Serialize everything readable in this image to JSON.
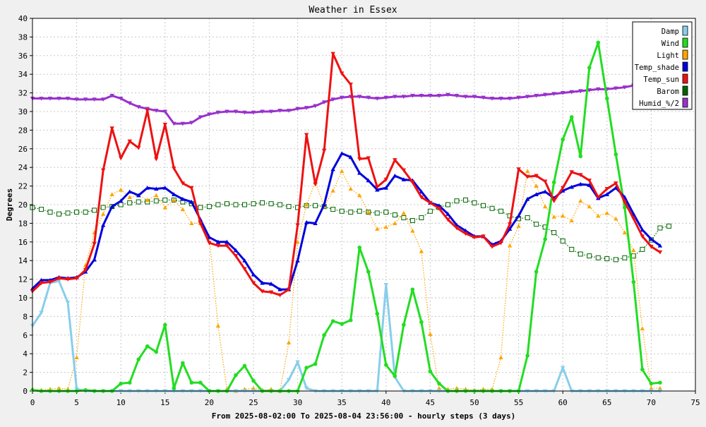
{
  "background_color": "#f0f0f0",
  "chart_data": {
    "type": "line",
    "title": "Weather in Essex",
    "xlabel": "From 2025-08-02:00 To 2025-08-04 23:56:00 - hourly steps (3 days)",
    "ylabel": "Degrees",
    "xlim": [
      0,
      75
    ],
    "ylim": [
      0,
      40
    ],
    "xticks": [
      0,
      5,
      10,
      15,
      20,
      25,
      30,
      35,
      40,
      45,
      50,
      55,
      60,
      65,
      70,
      75
    ],
    "yticks": [
      0,
      2,
      4,
      6,
      8,
      10,
      12,
      14,
      16,
      18,
      20,
      22,
      24,
      26,
      28,
      30,
      32,
      34,
      36,
      38,
      40
    ],
    "grid": true,
    "legend_position": "top-right",
    "series": [
      {
        "name": "Damp",
        "color": "#87ceeb",
        "style": "solid",
        "marker": "triangle-down",
        "values": [
          7.0,
          8.4,
          11.6,
          11.8,
          9.5,
          0.2,
          0,
          0,
          0,
          0,
          0,
          0,
          0,
          0,
          0,
          0,
          0,
          0,
          0,
          0,
          0,
          0,
          0,
          0,
          0,
          0,
          0,
          0,
          0,
          1.2,
          3.1,
          0.3,
          0,
          0,
          0,
          0,
          0,
          0,
          0,
          0,
          11.4,
          1.5,
          0,
          0,
          0,
          0,
          0,
          0,
          0,
          0,
          0,
          0,
          0,
          0,
          0,
          0,
          0,
          0,
          0,
          0,
          2.5,
          0,
          0,
          0,
          0,
          0,
          0,
          0,
          0,
          0,
          0,
          0
        ]
      },
      {
        "name": "Wind",
        "color": "#22dd22",
        "style": "solid",
        "marker": "circle",
        "values": [
          0.1,
          0,
          0,
          0,
          0,
          0,
          0.1,
          0,
          0,
          0,
          0.8,
          0.9,
          3.4,
          4.8,
          4.2,
          7.1,
          0.3,
          3.0,
          0.9,
          0.9,
          0,
          0,
          0,
          1.7,
          2.7,
          1.1,
          0,
          0,
          0,
          0,
          0,
          2.5,
          2.9,
          6.0,
          7.5,
          7.2,
          7.6,
          15.4,
          12.8,
          8.3,
          2.8,
          1.6,
          7.1,
          10.9,
          7.4,
          2.1,
          0.8,
          0,
          0,
          0,
          0,
          0,
          0,
          0,
          0,
          0,
          3.8,
          12.8,
          16.3,
          22.4,
          27.0,
          29.4,
          25.2,
          34.7,
          37.4,
          31.4,
          25.4,
          19.7,
          11.7,
          2.3,
          0.8,
          0.9
        ]
      },
      {
        "name": "Light",
        "color": "#ffa500",
        "style": "dotted",
        "marker": "triangle-up",
        "values": [
          0.2,
          0.1,
          0.2,
          0.3,
          0.2,
          3.6,
          13.5,
          17.0,
          19.0,
          21.1,
          21.6,
          20.8,
          21.0,
          20.5,
          21.0,
          19.7,
          20.5,
          19.5,
          18.0,
          18.0,
          16.5,
          7.0,
          0.2,
          0,
          0.2,
          0.3,
          0.1,
          0.2,
          0,
          5.2,
          16.0,
          20.0,
          22.4,
          19.8,
          21.5,
          23.6,
          21.7,
          21.0,
          19.2,
          17.4,
          17.6,
          18.0,
          19.1,
          17.2,
          15.0,
          6.1,
          0.3,
          0.2,
          0.3,
          0.2,
          0.1,
          0.2,
          0.2,
          3.6,
          15.6,
          17.7,
          23.6,
          22.0,
          19.8,
          18.7,
          18.8,
          18.3,
          20.4,
          19.8,
          18.8,
          19.1,
          18.5,
          17.0,
          15.1,
          6.7,
          0.3,
          0.3
        ]
      },
      {
        "name": "Temp_shade",
        "color": "#0000dd",
        "style": "solid",
        "marker": "triangle-up",
        "values": [
          11.0,
          11.9,
          11.9,
          12.2,
          12.1,
          12.2,
          12.8,
          14.1,
          17.8,
          19.8,
          20.4,
          21.4,
          21.0,
          21.8,
          21.7,
          21.8,
          21.1,
          20.6,
          20.3,
          18.4,
          16.5,
          16.0,
          16.0,
          15.1,
          14.0,
          12.5,
          11.6,
          11.5,
          10.9,
          10.9,
          14.0,
          18.1,
          18.0,
          20.0,
          23.8,
          25.5,
          25.1,
          23.4,
          22.6,
          21.6,
          21.8,
          23.1,
          22.7,
          22.6,
          21.4,
          20.2,
          19.9,
          19.0,
          17.8,
          17.2,
          16.6,
          16.6,
          15.7,
          16.1,
          17.4,
          18.8,
          20.6,
          21.1,
          21.4,
          20.7,
          21.5,
          21.9,
          22.2,
          22.1,
          20.7,
          21.1,
          21.8,
          20.8,
          19.0,
          17.3,
          16.3,
          15.6
        ]
      },
      {
        "name": "Temp_sun",
        "color": "#ee1111",
        "style": "solid",
        "marker": "triangle-down",
        "values": [
          10.7,
          11.6,
          11.7,
          12.1,
          12.0,
          12.1,
          13.0,
          15.8,
          23.7,
          28.2,
          25.0,
          26.8,
          26.1,
          30.1,
          24.9,
          28.6,
          23.9,
          22.3,
          21.8,
          18.0,
          15.9,
          15.6,
          15.6,
          14.5,
          13.1,
          11.6,
          10.7,
          10.6,
          10.3,
          10.9,
          17.8,
          27.5,
          22.2,
          25.8,
          36.2,
          34.1,
          32.9,
          24.9,
          25.0,
          21.9,
          22.7,
          24.8,
          23.7,
          22.4,
          20.8,
          20.2,
          19.6,
          18.4,
          17.5,
          16.9,
          16.5,
          16.6,
          15.5,
          15.9,
          17.9,
          23.8,
          23.0,
          23.1,
          22.5,
          20.4,
          21.8,
          23.5,
          23.2,
          22.6,
          20.8,
          21.7,
          22.3,
          20.3,
          18.5,
          16.6,
          15.5,
          14.9
        ]
      },
      {
        "name": "Barom",
        "color": "#006400",
        "style": "dotted",
        "marker": "square",
        "values": [
          19.7,
          19.5,
          19.2,
          19.0,
          19.1,
          19.2,
          19.2,
          19.4,
          19.7,
          19.8,
          20.0,
          20.2,
          20.3,
          20.3,
          20.4,
          20.5,
          20.5,
          20.3,
          20.1,
          19.7,
          19.8,
          20.0,
          20.1,
          20.0,
          20.0,
          20.1,
          20.2,
          20.1,
          20.0,
          19.8,
          19.7,
          19.9,
          19.9,
          19.8,
          19.5,
          19.3,
          19.2,
          19.3,
          19.2,
          19.1,
          19.2,
          18.9,
          18.6,
          18.3,
          18.6,
          19.3,
          19.7,
          20.0,
          20.4,
          20.5,
          20.2,
          19.9,
          19.6,
          19.3,
          18.8,
          18.5,
          18.6,
          17.9,
          17.6,
          17.0,
          16.1,
          15.2,
          14.7,
          14.5,
          14.3,
          14.2,
          14.1,
          14.3,
          14.5,
          15.2,
          16.2,
          17.5,
          17.7
        ]
      },
      {
        "name": "Humid_%/2",
        "color": "#9932cc",
        "style": "solid",
        "marker": "triangle-down",
        "values": [
          31.4,
          31.4,
          31.4,
          31.4,
          31.4,
          31.3,
          31.3,
          31.3,
          31.3,
          31.7,
          31.4,
          30.9,
          30.5,
          30.3,
          30.1,
          30.0,
          28.7,
          28.7,
          28.8,
          29.4,
          29.7,
          29.9,
          30.0,
          30.0,
          29.9,
          29.9,
          30.0,
          30.0,
          30.1,
          30.1,
          30.3,
          30.4,
          30.6,
          31.0,
          31.3,
          31.5,
          31.6,
          31.6,
          31.5,
          31.4,
          31.5,
          31.6,
          31.6,
          31.7,
          31.7,
          31.7,
          31.7,
          31.8,
          31.7,
          31.6,
          31.6,
          31.5,
          31.4,
          31.4,
          31.4,
          31.5,
          31.6,
          31.7,
          31.8,
          31.9,
          32.0,
          32.1,
          32.2,
          32.3,
          32.4,
          32.4,
          32.5,
          32.6,
          32.8,
          33.0,
          33.0,
          33.1
        ]
      }
    ]
  }
}
